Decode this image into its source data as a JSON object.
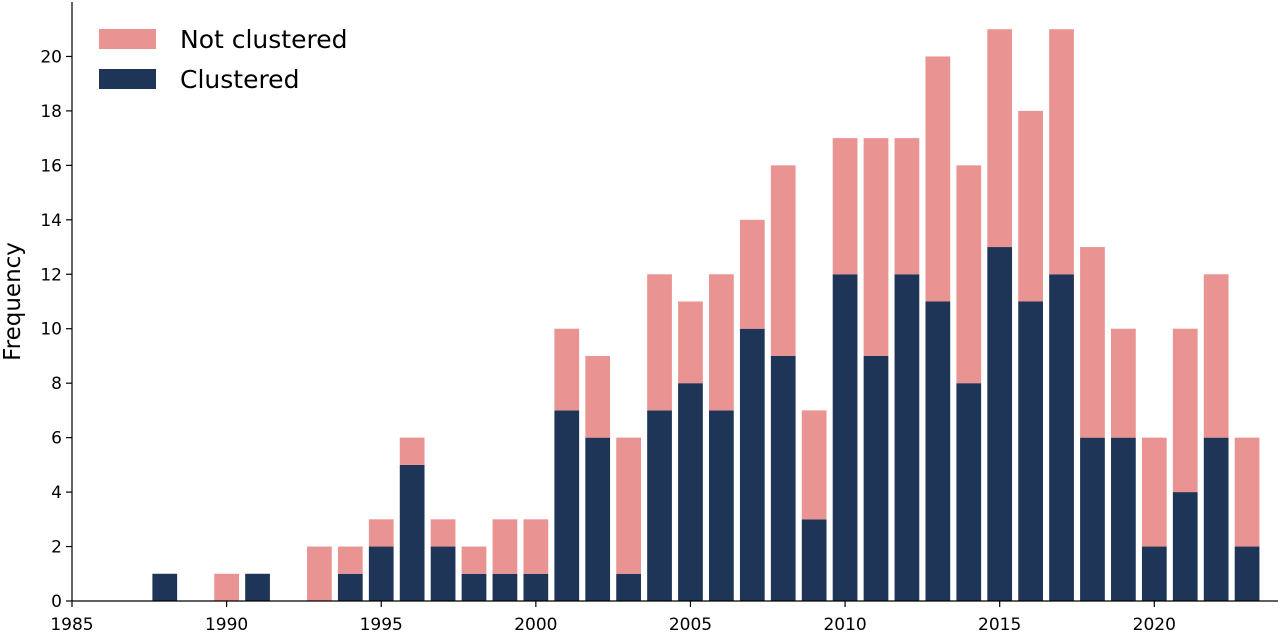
{
  "chart_data": {
    "type": "bar",
    "stacked": true,
    "title": "",
    "xlabel": "",
    "ylabel": "Frequency",
    "x": [
      1988,
      1990,
      1991,
      1993,
      1994,
      1995,
      1996,
      1997,
      1998,
      1999,
      2000,
      2001,
      2002,
      2003,
      2004,
      2005,
      2006,
      2007,
      2008,
      2009,
      2010,
      2011,
      2012,
      2013,
      2014,
      2015,
      2016,
      2017,
      2018,
      2019,
      2020,
      2021,
      2022,
      2023
    ],
    "series": [
      {
        "name": "Clustered",
        "color": "#1f3557",
        "values": [
          1,
          0,
          1,
          0,
          1,
          2,
          5,
          2,
          1,
          1,
          1,
          7,
          6,
          1,
          7,
          8,
          7,
          10,
          9,
          3,
          12,
          9,
          12,
          11,
          8,
          13,
          11,
          12,
          6,
          6,
          2,
          4,
          6,
          2
        ]
      },
      {
        "name": "Not clustered",
        "color": "#e99392",
        "values": [
          0,
          1,
          0,
          2,
          1,
          1,
          1,
          1,
          1,
          2,
          2,
          3,
          3,
          5,
          5,
          3,
          5,
          4,
          7,
          4,
          5,
          8,
          5,
          9,
          8,
          8,
          7,
          9,
          7,
          4,
          4,
          6,
          6,
          4
        ]
      }
    ],
    "xlim": [
      1985,
      2024
    ],
    "ylim": [
      0,
      22
    ],
    "xticks": [
      1985,
      1990,
      1995,
      2000,
      2005,
      2010,
      2015,
      2020
    ],
    "yticks": [
      0,
      2,
      4,
      6,
      8,
      10,
      12,
      14,
      16,
      18,
      20
    ],
    "grid": false,
    "legend_position": "top-left",
    "legend_order": [
      "Not clustered",
      "Clustered"
    ]
  }
}
